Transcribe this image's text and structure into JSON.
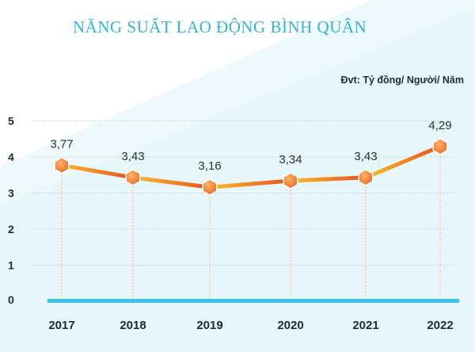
{
  "title": "NĂNG SUẤT LAO ĐỘNG BÌNH QUÂN",
  "unit_note": "Đvt: Tỷ đồng/ Người/ Năm",
  "colors": {
    "background": "#e6f6fb",
    "title": "#2fb4d6",
    "baseline": "#3cc3e3",
    "line_light": "#f7bd28",
    "line_dark": "#e7521f",
    "marker": "#f08a3a"
  },
  "chart_data": {
    "type": "line",
    "title": "NĂNG SUẤT LAO ĐỘNG BÌNH QUÂN",
    "unit": "Đvt: Tỷ đồng/ Người/ Năm",
    "categories": [
      "2017",
      "2018",
      "2019",
      "2020",
      "2021",
      "2022"
    ],
    "series": [
      {
        "values": [
          3.77,
          3.43,
          3.16,
          3.34,
          3.43,
          4.29
        ],
        "value_labels": [
          "3,77",
          "3,43",
          "3,16",
          "3,34",
          "3,43",
          "4,29"
        ]
      }
    ],
    "y_ticks": [
      "0",
      "1",
      "2",
      "3",
      "4",
      "5"
    ],
    "ylim": [
      0,
      5
    ],
    "grid": true,
    "legend": "none"
  }
}
